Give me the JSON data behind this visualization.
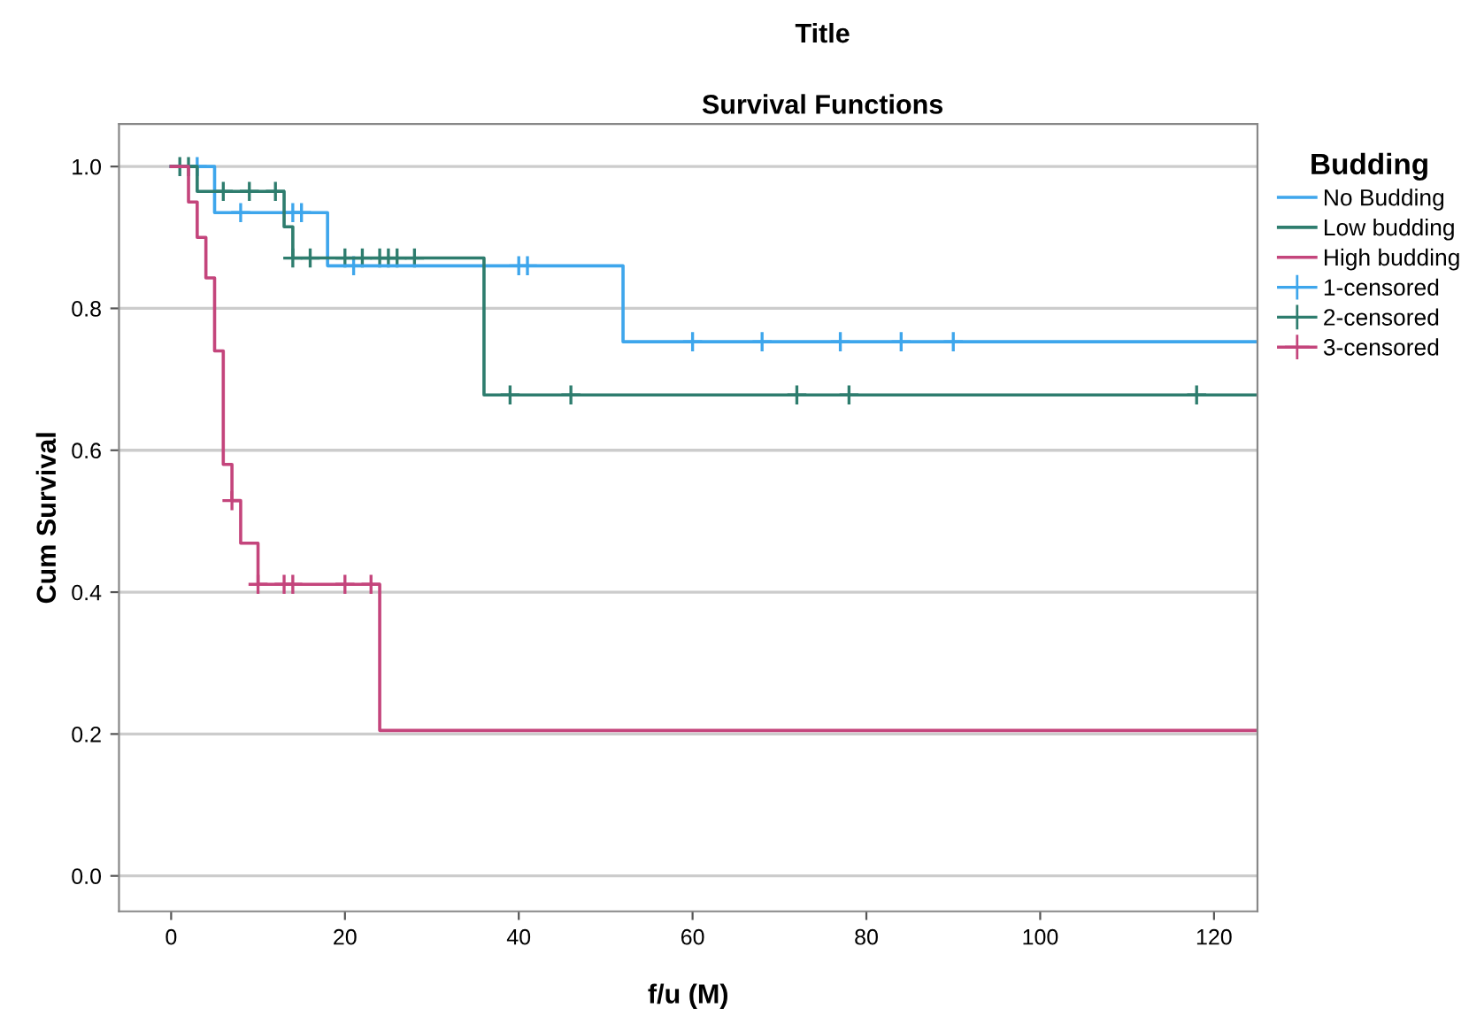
{
  "chart_data": {
    "type": "step",
    "title": "Title",
    "subtitle": "Survival Functions",
    "xlabel": "f/u (M)",
    "ylabel": "Cum Survival",
    "legend_title": "Budding",
    "xlim": [
      -6,
      125
    ],
    "xticks": [
      0,
      20,
      40,
      60,
      80,
      100,
      120
    ],
    "ylim": [
      -0.05,
      1.06
    ],
    "yticks": [
      {
        "value": 0,
        "label": "0.0"
      },
      {
        "value": 0.2,
        "label": "0.2"
      },
      {
        "value": 0.4,
        "label": "0.4"
      },
      {
        "value": 0.6,
        "label": "0.6"
      },
      {
        "value": 0.8,
        "label": "0.8"
      },
      {
        "value": 1,
        "label": "1.0"
      }
    ],
    "grid": "y",
    "legend": "right",
    "series": [
      {
        "name": "No Budding",
        "color": "#3ea6ec",
        "x": [
          0,
          5,
          18,
          52,
          125
        ],
        "values": [
          1.0,
          0.935,
          0.86,
          0.753,
          0.753
        ]
      },
      {
        "name": "Low budding",
        "color": "#2e7d6e",
        "x": [
          0,
          3,
          13,
          14,
          36,
          125
        ],
        "values": [
          1.0,
          0.965,
          0.915,
          0.871,
          0.678,
          0.678
        ]
      },
      {
        "name": "High budding",
        "color": "#c4457c",
        "x": [
          0,
          2,
          3,
          4,
          5,
          6,
          7,
          8,
          10,
          24,
          125
        ],
        "values": [
          1.0,
          0.95,
          0.9,
          0.843,
          0.74,
          0.58,
          0.529,
          0.469,
          0.411,
          0.205,
          0.205
        ]
      },
      {
        "name": "1-censored",
        "type": "scatter",
        "marker": "cross",
        "color": "#3ea6ec",
        "x": [
          3,
          8,
          14,
          15,
          21,
          40,
          41,
          60,
          68,
          77,
          84,
          90
        ],
        "values": [
          1.0,
          0.935,
          0.935,
          0.935,
          0.86,
          0.86,
          0.86,
          0.753,
          0.753,
          0.753,
          0.753,
          0.753
        ]
      },
      {
        "name": "2-censored",
        "type": "scatter",
        "marker": "cross",
        "color": "#2e7d6e",
        "x": [
          1,
          2,
          6,
          9,
          12,
          14,
          16,
          20,
          22,
          24,
          25,
          26,
          28,
          39,
          46,
          72,
          78,
          118
        ],
        "values": [
          1.0,
          1.0,
          0.965,
          0.965,
          0.965,
          0.871,
          0.871,
          0.871,
          0.871,
          0.871,
          0.871,
          0.871,
          0.871,
          0.678,
          0.678,
          0.678,
          0.678,
          0.678
        ]
      },
      {
        "name": "3-censored",
        "type": "scatter",
        "marker": "cross",
        "color": "#c4457c",
        "x": [
          7,
          10,
          13,
          14,
          20,
          23
        ],
        "values": [
          0.529,
          0.411,
          0.411,
          0.411,
          0.411,
          0.411
        ]
      }
    ]
  }
}
